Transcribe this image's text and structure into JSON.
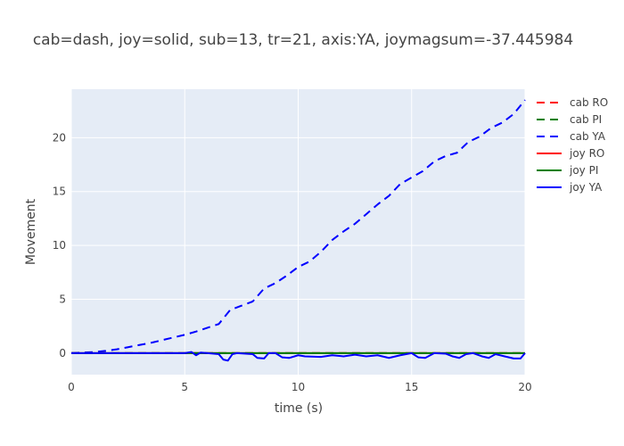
{
  "chart_data": {
    "type": "line",
    "title": "cab=dash, joy=solid, sub=13, tr=21, axis:YA, joymagsum=-37.445984",
    "xlabel": "time (s)",
    "ylabel": "Movement",
    "xlim": [
      0,
      20
    ],
    "ylim": [
      -2,
      24.5
    ],
    "x_ticks": [
      0,
      5,
      10,
      15,
      20
    ],
    "y_ticks": [
      0,
      5,
      10,
      15,
      20
    ],
    "grid": true,
    "legend_position": "right",
    "background_color": "#e5ecf6",
    "series": [
      {
        "name": "cab RO",
        "color": "#ff0000",
        "dash": "dash",
        "x": [
          0,
          20
        ],
        "y": [
          0,
          0
        ]
      },
      {
        "name": "cab PI",
        "color": "#008000",
        "dash": "dash",
        "x": [
          0,
          20
        ],
        "y": [
          0,
          0
        ]
      },
      {
        "name": "cab YA",
        "color": "#0000ff",
        "dash": "dash",
        "x": [
          0,
          0.5,
          1,
          1.5,
          2,
          2.5,
          3,
          3.5,
          4,
          4.5,
          5,
          5.5,
          6,
          6.5,
          7,
          7.5,
          8,
          8.5,
          9,
          9.5,
          10,
          10.5,
          11,
          11.5,
          12,
          12.5,
          13,
          13.5,
          14,
          14.5,
          15,
          15.5,
          16,
          16.5,
          17,
          17.5,
          18,
          18.5,
          19,
          19.5,
          20
        ],
        "y": [
          0,
          0.05,
          0.1,
          0.2,
          0.35,
          0.55,
          0.75,
          0.95,
          1.2,
          1.45,
          1.7,
          2.0,
          2.35,
          2.7,
          4.0,
          4.4,
          4.8,
          6.0,
          6.5,
          7.2,
          8.0,
          8.5,
          9.4,
          10.5,
          11.3,
          12.0,
          12.9,
          13.8,
          14.6,
          15.7,
          16.3,
          16.9,
          17.8,
          18.3,
          18.6,
          19.6,
          20.1,
          20.9,
          21.4,
          22.2,
          23.5
        ]
      },
      {
        "name": "joy RO",
        "color": "#ff0000",
        "dash": "solid",
        "x": [
          0,
          20
        ],
        "y": [
          0,
          0
        ]
      },
      {
        "name": "joy PI",
        "color": "#008000",
        "dash": "solid",
        "x": [
          0,
          20
        ],
        "y": [
          0,
          0
        ]
      },
      {
        "name": "joy YA",
        "color": "#0000ff",
        "dash": "solid",
        "x": [
          0,
          1,
          2,
          3,
          4,
          5,
          5.3,
          5.5,
          5.7,
          6,
          6.5,
          6.7,
          6.9,
          7.1,
          7.3,
          8,
          8.2,
          8.5,
          8.7,
          9,
          9.3,
          9.6,
          10,
          10.3,
          11,
          11.5,
          12,
          12.5,
          13,
          13.5,
          14,
          14.5,
          15,
          15.3,
          15.6,
          16,
          16.5,
          16.8,
          17.1,
          17.4,
          17.7,
          18.1,
          18.4,
          18.7,
          19.1,
          19.5,
          19.8,
          20
        ],
        "y": [
          0,
          0,
          0,
          0,
          0,
          0,
          0.1,
          -0.2,
          0.05,
          0,
          -0.1,
          -0.6,
          -0.7,
          -0.1,
          0,
          -0.1,
          -0.45,
          -0.5,
          0,
          0,
          -0.4,
          -0.45,
          -0.2,
          -0.3,
          -0.35,
          -0.2,
          -0.3,
          -0.15,
          -0.3,
          -0.2,
          -0.45,
          -0.2,
          0,
          -0.4,
          -0.45,
          0,
          -0.05,
          -0.3,
          -0.45,
          -0.1,
          0,
          -0.3,
          -0.45,
          -0.1,
          -0.3,
          -0.5,
          -0.5,
          0
        ]
      }
    ]
  }
}
